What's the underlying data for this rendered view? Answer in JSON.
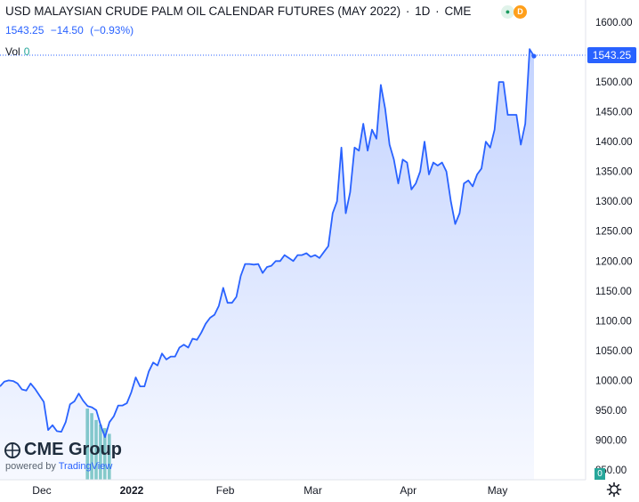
{
  "header": {
    "title": "USD MALAYSIAN CRUDE PALM OIL CALENDAR FUTURES (MAY 2022)",
    "interval": "1D",
    "exchange": "CME",
    "separator": "·",
    "badge_d": "D"
  },
  "quote": {
    "last": "1543.25",
    "change": "−14.50",
    "change_pct": "(−0.93%)"
  },
  "volume": {
    "label": "Vol",
    "value": "0",
    "zero_tag": "0"
  },
  "price_tag": "1543.25",
  "logo": {
    "name": "CME Group",
    "powered_by": "powered by",
    "powered_brand": "TradingView"
  },
  "colors": {
    "line": "#2962ff",
    "area": "#2962ff",
    "volume": "#26a69a",
    "grid": "#f0f3fa",
    "text": "#131722"
  },
  "icons": {
    "settings": "gear-icon",
    "status": "green-dot-icon"
  },
  "chart_data": {
    "type": "area",
    "x_ticks": [
      "Dec",
      "2022",
      "Feb",
      "Mar",
      "Apr",
      "May"
    ],
    "y_ticks": [
      "850.00",
      "900.00",
      "950.00",
      "1000.00",
      "1050.00",
      "1100.00",
      "1150.00",
      "1200.00",
      "1250.00",
      "1300.00",
      "1350.00",
      "1400.00",
      "1450.00",
      "1500.00",
      "1550.00",
      "1600.00"
    ],
    "ylim": [
      837,
      1617
    ],
    "grid": false,
    "series": [
      {
        "values": [
          990,
          998,
          1000,
          999,
          995,
          985,
          983,
          995,
          986,
          975,
          964,
          917,
          925,
          915,
          914,
          930,
          960,
          965,
          978,
          966,
          957,
          955,
          950,
          925,
          905,
          930,
          940,
          958,
          958,
          962,
          980,
          1005,
          990,
          990,
          1015,
          1030,
          1025,
          1045,
          1035,
          1040,
          1040,
          1055,
          1060,
          1055,
          1070,
          1068,
          1080,
          1095,
          1105,
          1110,
          1125,
          1155,
          1130,
          1130,
          1140,
          1175,
          1195,
          1195,
          1194,
          1195,
          1180,
          1190,
          1192,
          1200,
          1200,
          1210,
          1205,
          1200,
          1210,
          1210,
          1213,
          1207,
          1210,
          1205,
          1215,
          1225,
          1280,
          1300,
          1390,
          1280,
          1315,
          1390,
          1385,
          1430,
          1385,
          1420,
          1405,
          1495,
          1455,
          1395,
          1370,
          1330,
          1370,
          1365,
          1320,
          1330,
          1350,
          1400,
          1345,
          1365,
          1360,
          1365,
          1350,
          1300,
          1262,
          1280,
          1330,
          1335,
          1325,
          1345,
          1355,
          1400,
          1390,
          1420,
          1500,
          1500,
          1445,
          1445,
          1445,
          1395,
          1430,
          1555,
          1543.25
        ]
      },
      {
        "name": "Vol",
        "values": [
          0,
          0,
          0,
          0,
          0,
          0,
          0,
          0,
          0,
          0,
          0,
          0,
          0,
          0,
          0,
          0,
          0,
          0,
          0,
          0,
          62,
          58,
          52,
          48,
          45,
          40,
          0,
          0,
          0,
          0,
          0,
          0,
          0,
          0,
          0,
          0,
          0,
          0,
          0,
          0,
          0,
          0,
          0,
          0,
          0,
          0,
          0,
          0,
          0,
          0,
          0,
          0,
          0,
          0,
          0,
          0,
          0,
          0,
          0,
          0,
          0,
          0,
          0,
          0,
          0,
          0,
          0,
          0,
          0,
          0,
          0,
          0,
          0,
          0,
          0,
          0,
          0,
          0,
          0,
          0,
          0,
          0,
          0,
          0,
          0,
          0,
          0,
          0,
          0,
          0,
          0,
          0,
          0,
          0,
          0,
          0,
          0,
          0,
          0,
          0,
          0,
          0,
          0,
          0,
          0,
          0,
          0,
          0,
          0,
          0,
          0,
          0,
          0,
          0,
          0,
          0,
          0,
          0,
          0,
          0,
          0,
          0,
          0
        ]
      }
    ]
  }
}
